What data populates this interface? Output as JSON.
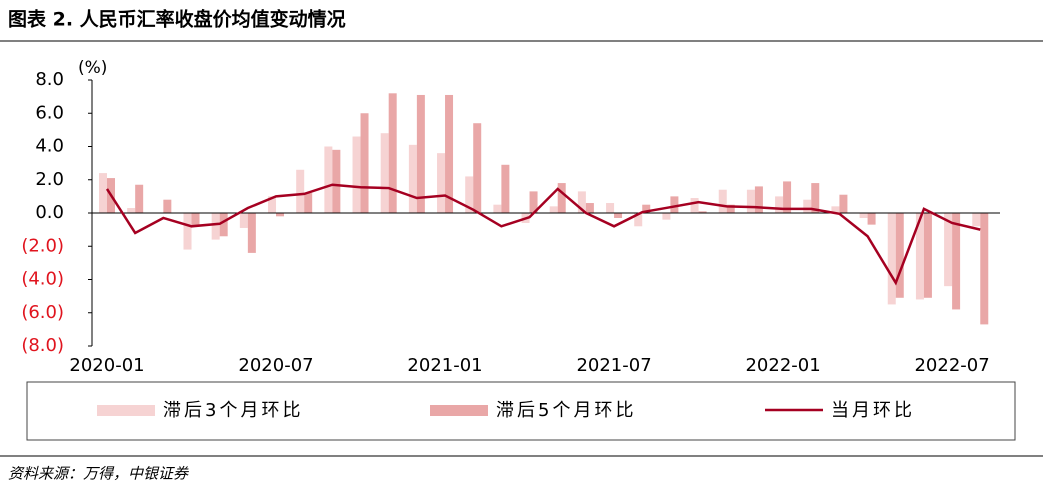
{
  "chart_data": {
    "type": "bar_line",
    "title": "图表 2. 人民币汇率收盘价均值变动情况",
    "y_unit": "(%)",
    "source": "资料来源：万得，中银证券",
    "categories": [
      "2020-01",
      null,
      null,
      null,
      null,
      null,
      "2020-07",
      null,
      null,
      null,
      null,
      null,
      "2021-01",
      null,
      null,
      null,
      null,
      null,
      "2021-07",
      null,
      null,
      null,
      null,
      null,
      "2022-01",
      null,
      null,
      null,
      null,
      null,
      "2022-07",
      null
    ],
    "ylim": [
      -8,
      8
    ],
    "yticks": [
      {
        "value": 8,
        "label": "8.0"
      },
      {
        "value": 6,
        "label": "6.0"
      },
      {
        "value": 4,
        "label": "4.0"
      },
      {
        "value": 2,
        "label": "2.0"
      },
      {
        "value": 0,
        "label": "0.0"
      },
      {
        "value": -2,
        "label": "(2.0)"
      },
      {
        "value": -4,
        "label": "(4.0)"
      },
      {
        "value": -6,
        "label": "(6.0)"
      },
      {
        "value": -8,
        "label": "(8.0)"
      }
    ],
    "negative_tick_color": "#e0141e",
    "series": [
      {
        "name": "滞后3个月环比",
        "kind": "bar",
        "color": "#f6d3d3",
        "values": [
          2.4,
          0.3,
          0,
          -2.2,
          -1.6,
          -0.9,
          1.0,
          2.6,
          4.0,
          4.6,
          4.8,
          4.1,
          3.6,
          2.2,
          0.5,
          -0.6,
          0.4,
          1.3,
          0.6,
          -0.8,
          -0.4,
          0.9,
          1.4,
          1.4,
          1.0,
          0.8,
          0.4,
          -0.3,
          -5.5,
          -5.2,
          -4.4,
          -0.8
        ]
      },
      {
        "name": "滞后5个月环比",
        "kind": "bar",
        "color": "#e9a7a7",
        "values": [
          2.1,
          1.7,
          0.8,
          -0.8,
          -1.4,
          -2.4,
          -0.2,
          1.2,
          3.8,
          6.0,
          7.2,
          7.1,
          7.1,
          5.4,
          2.9,
          1.3,
          1.8,
          0.6,
          -0.3,
          0.5,
          1.0,
          0.1,
          0.5,
          1.6,
          1.9,
          1.8,
          1.1,
          -0.7,
          -5.1,
          -5.1,
          -5.8,
          -6.7
        ]
      },
      {
        "name": "当月环比",
        "kind": "line",
        "color": "#a50021",
        "values": [
          1.45,
          -1.2,
          -0.3,
          -0.8,
          -0.65,
          0.3,
          1.0,
          1.15,
          1.7,
          1.55,
          1.5,
          0.9,
          1.05,
          0.2,
          -0.8,
          -0.25,
          1.45,
          0,
          -0.8,
          0.05,
          0.35,
          0.65,
          0.4,
          0.35,
          0.25,
          0.25,
          -0.05,
          -1.4,
          -4.2,
          0.25,
          -0.6,
          -1.0
        ]
      }
    ]
  }
}
